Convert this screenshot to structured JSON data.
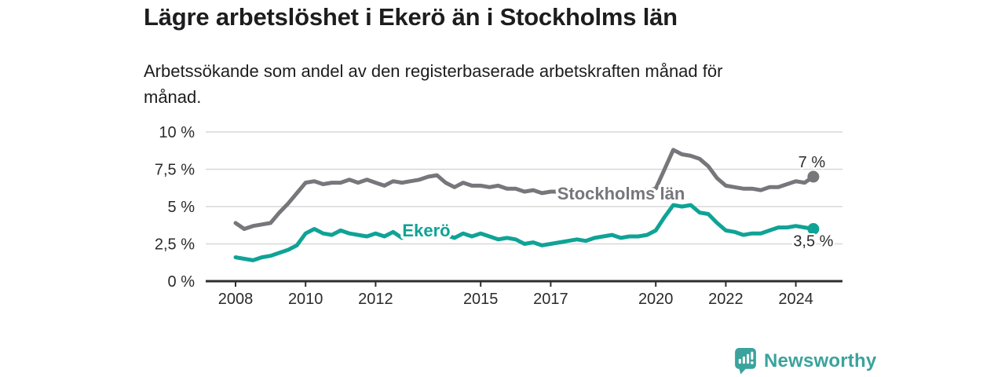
{
  "header": {
    "title": "Lägre arbetslöshet i Ekerö än i Stockholms län",
    "subtitle": "Arbetssökande som andel av den registerbaserade arbetskraften månad för\nmånad."
  },
  "footer": {
    "brand": "Newsworthy"
  },
  "colors": {
    "stockholm_line": "#76767b",
    "ekero_line": "#0fa396",
    "brand_teal": "#3aa39d",
    "gridline": "#d8d8d8",
    "axis": "#2e2e2e",
    "text": "#1d1d1f",
    "tick_text": "#2b2b2e"
  },
  "chart_data": {
    "type": "line",
    "title": "Lägre arbetslöshet i Ekerö än i Stockholms län",
    "subtitle": "Arbetssökande som andel av den registerbaserade arbetskraften månad för månad.",
    "grid": true,
    "legend": "inline-labels",
    "x_start": 2008,
    "x_step_years": 0.25,
    "x_end": 2024.5,
    "y_unit": "%",
    "ylim": [
      0,
      10
    ],
    "x_axis": {
      "ticks": [
        {
          "value": 2008,
          "label": "2008"
        },
        {
          "value": 2010,
          "label": "2010"
        },
        {
          "value": 2012,
          "label": "2012"
        },
        {
          "value": 2015,
          "label": "2015"
        },
        {
          "value": 2017,
          "label": "2017"
        },
        {
          "value": 2020,
          "label": "2020"
        },
        {
          "value": 2022,
          "label": "2022"
        },
        {
          "value": 2024,
          "label": "2024"
        }
      ]
    },
    "y_axis": {
      "ticks": [
        {
          "value": 0,
          "label": "0 %"
        },
        {
          "value": 2.5,
          "label": "2,5 %"
        },
        {
          "value": 5,
          "label": "5 %"
        },
        {
          "value": 7.5,
          "label": "7,5 %"
        },
        {
          "value": 10,
          "label": "10 %"
        }
      ]
    },
    "series": [
      {
        "name": "Stockholms län",
        "color": "#76767b",
        "end_value": 7,
        "end_label": "7 %",
        "values": [
          3.9,
          3.5,
          3.7,
          3.8,
          3.9,
          4.6,
          5.2,
          5.9,
          6.6,
          6.7,
          6.5,
          6.6,
          6.6,
          6.8,
          6.6,
          6.8,
          6.6,
          6.4,
          6.7,
          6.6,
          6.7,
          6.8,
          7.0,
          7.1,
          6.6,
          6.3,
          6.6,
          6.4,
          6.4,
          6.3,
          6.4,
          6.2,
          6.2,
          6.0,
          6.1,
          5.9,
          6.0,
          6.0,
          5.9,
          5.8,
          5.8,
          5.7,
          5.7,
          5.8,
          5.8,
          5.9,
          6.0,
          6.1,
          6.2,
          7.5,
          8.8,
          8.5,
          8.4,
          8.2,
          7.7,
          6.9,
          6.4,
          6.3,
          6.2,
          6.2,
          6.1,
          6.3,
          6.3,
          6.5,
          6.7,
          6.6,
          7.0
        ]
      },
      {
        "name": "Ekerö",
        "color": "#0fa396",
        "end_value": 3.5,
        "end_label": "3,5 %",
        "values": [
          1.6,
          1.5,
          1.4,
          1.6,
          1.7,
          1.9,
          2.1,
          2.4,
          3.2,
          3.5,
          3.2,
          3.1,
          3.4,
          3.2,
          3.1,
          3.0,
          3.2,
          3.0,
          3.3,
          2.9,
          3.1,
          3.3,
          3.0,
          3.2,
          3.1,
          2.9,
          3.2,
          3.0,
          3.2,
          3.0,
          2.8,
          2.9,
          2.8,
          2.5,
          2.6,
          2.4,
          2.5,
          2.6,
          2.7,
          2.8,
          2.7,
          2.9,
          3.0,
          3.1,
          2.9,
          3.0,
          3.0,
          3.1,
          3.4,
          4.3,
          5.1,
          5.0,
          5.1,
          4.6,
          4.5,
          3.9,
          3.4,
          3.3,
          3.1,
          3.2,
          3.2,
          3.4,
          3.6,
          3.6,
          3.7,
          3.6,
          3.5
        ]
      }
    ]
  }
}
